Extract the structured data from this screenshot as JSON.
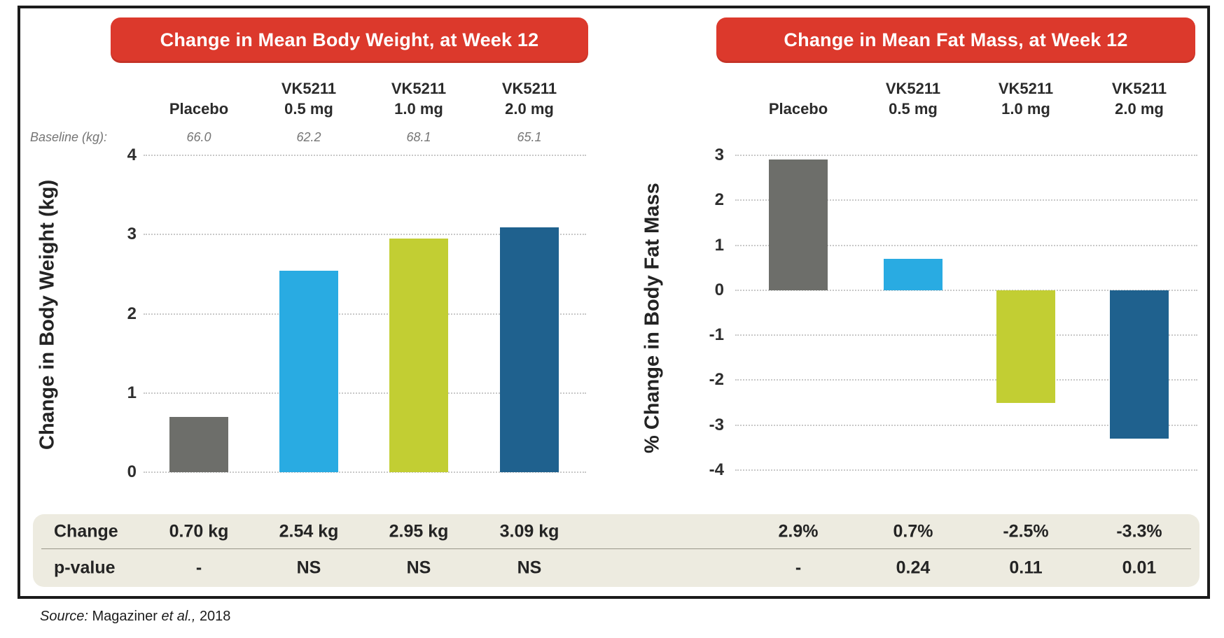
{
  "column_headers": [
    {
      "line1": "",
      "line2": "Placebo"
    },
    {
      "line1": "VK5211",
      "line2": "0.5 mg"
    },
    {
      "line1": "VK5211",
      "line2": "1.0 mg"
    },
    {
      "line1": "VK5211",
      "line2": "2.0 mg"
    }
  ],
  "chart_data": [
    {
      "type": "bar",
      "title": "Change in Mean Body Weight, at Week 12",
      "ylabel": "Change in Body Weight (kg)",
      "categories": [
        "Placebo",
        "VK5211 0.5 mg",
        "VK5211 1.0 mg",
        "VK5211 2.0 mg"
      ],
      "baseline_label": "Baseline (kg):",
      "baseline_values": [
        "66.0",
        "62.2",
        "68.1",
        "65.1"
      ],
      "values": [
        0.7,
        2.54,
        2.95,
        3.09
      ],
      "yticks": [
        4,
        3,
        2,
        1,
        0
      ],
      "ylim": [
        0,
        4
      ],
      "grid": "dotted",
      "bar_colors": [
        "#6d6e6a",
        "#29abe2",
        "#c2ce33",
        "#1f618e"
      ],
      "change_labels": [
        "0.70 kg",
        "2.54 kg",
        "2.95 kg",
        "3.09 kg"
      ],
      "p_values": [
        "-",
        "NS",
        "NS",
        "NS"
      ]
    },
    {
      "type": "bar",
      "title": "Change in Mean Fat Mass, at Week 12",
      "ylabel": "% Change in Body Fat Mass",
      "categories": [
        "Placebo",
        "VK5211 0.5 mg",
        "VK5211 1.0 mg",
        "VK5211 2.0 mg"
      ],
      "values": [
        2.9,
        0.7,
        -2.5,
        -3.3
      ],
      "yticks": [
        3,
        2,
        1,
        0,
        -1,
        -2,
        -3,
        -4
      ],
      "ylim": [
        -4,
        3
      ],
      "grid": "dotted",
      "bar_colors": [
        "#6d6e6a",
        "#29abe2",
        "#c2ce33",
        "#1f618e"
      ],
      "change_labels": [
        "2.9%",
        "0.7%",
        "-2.5%",
        "-3.3%"
      ],
      "p_values": [
        "-",
        "0.24",
        "0.11",
        "0.01"
      ]
    }
  ],
  "table": {
    "row_labels": [
      "Change",
      "p-value"
    ]
  },
  "source": {
    "prefix": "Source:",
    "author": "Magaziner",
    "etal": "et al.,",
    "year": "2018"
  },
  "colors": {
    "banner_red": "#dc392c",
    "placebo_gray": "#6d6e6a",
    "dose05_cyan": "#29abe2",
    "dose10_green": "#c2ce33",
    "dose20_navy": "#1f618e",
    "table_beige": "#edebe0",
    "gridline_gray": "#c8c8c8",
    "frame_black": "#1b1b1b"
  }
}
